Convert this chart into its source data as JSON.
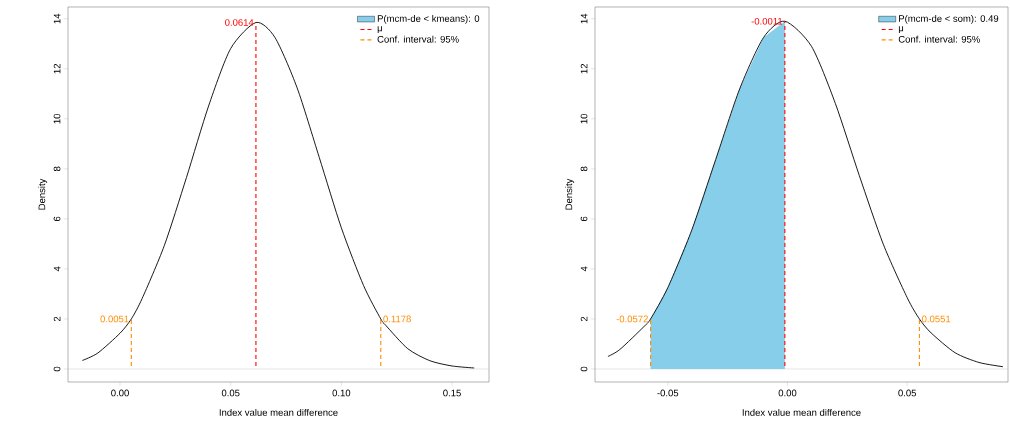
{
  "chart_data": [
    {
      "type": "line",
      "xlabel": "Index value mean difference",
      "ylabel": "Density",
      "xlim": [
        -0.0235,
        0.1667
      ],
      "ylim": [
        -0.52,
        14.47
      ],
      "xticks": [
        {
          "value": 0,
          "label": "0.00"
        },
        {
          "value": 0.05,
          "label": "0.05"
        },
        {
          "value": 0.1,
          "label": "0.10"
        },
        {
          "value": 0.15,
          "label": "0.15"
        }
      ],
      "yticks": [
        0,
        2,
        4,
        6,
        8,
        10,
        12,
        14
      ],
      "legend": "top right",
      "series": [
        {
          "type": "area",
          "name": "P(mcm-de < kmeans): 0",
          "color": "#87ceeb"
        },
        {
          "color": "#000000",
          "x": [
            -0.017,
            -0.01,
            0,
            0.0051,
            0.01,
            0.02,
            0.03,
            0.04,
            0.05,
            0.0614,
            0.07,
            0.08,
            0.09,
            0.1,
            0.11,
            0.1178,
            0.12,
            0.13,
            0.14,
            0.15,
            0.16
          ],
          "values": [
            0.34,
            0.64,
            1.43,
            2.0,
            2.82,
            4.93,
            7.65,
            10.51,
            12.81,
            13.85,
            13.25,
            11.24,
            8.46,
            5.64,
            3.34,
            2.0,
            1.75,
            0.81,
            0.33,
            0.12,
            0.04
          ]
        },
        {
          "name": "μ",
          "color": "#ff0000",
          "line_style": "dashed",
          "x": [
            0.0614,
            0.0614
          ],
          "values": [
            0,
            13.85
          ]
        },
        {
          "name": "Conf. interval: 95%",
          "color": "#ff8c00",
          "line_style": "dashed",
          "x": [
            0.0051,
            0.0051,
            null,
            0.1178,
            0.1178
          ],
          "values": [
            0,
            2.0,
            null,
            0,
            2.0
          ]
        }
      ],
      "ref_lines": [
        {
          "axis": "y",
          "value": 0,
          "color": "#bebebe"
        }
      ],
      "annotations": [
        {
          "text": "0.0614",
          "x": 0.0614,
          "y": 13.85
        },
        {
          "text": "0.0051",
          "x": 0.0051,
          "y": 2.0
        },
        {
          "text": "0.1178",
          "x": 0.1178,
          "y": 2.0
        }
      ]
    },
    {
      "type": "line",
      "xlabel": "Index value mean difference",
      "ylabel": "Density",
      "xlim": [
        -0.0804,
        0.0921
      ],
      "ylim": [
        -0.52,
        14.47
      ],
      "xticks": [
        {
          "value": -0.05,
          "label": "-0.05"
        },
        {
          "value": 0,
          "label": "0.00"
        },
        {
          "value": 0.05,
          "label": "0.05"
        }
      ],
      "yticks": [
        0,
        2,
        4,
        6,
        8,
        10,
        12,
        14
      ],
      "legend": "top right",
      "series": [
        {
          "type": "area",
          "name": "P(mcm-de < som): 0.49",
          "color": "#87ceeb",
          "x": [
            -0.0572,
            -0.05,
            -0.04,
            -0.03,
            -0.02,
            -0.01,
            -0.0011
          ],
          "values": [
            2.0,
            3.25,
            5.55,
            8.37,
            11.19,
            13.25,
            13.9
          ]
        },
        {
          "color": "#000000",
          "x": [
            -0.075,
            -0.07,
            -0.06,
            -0.0572,
            -0.05,
            -0.04,
            -0.03,
            -0.02,
            -0.01,
            -0.0011,
            0.01,
            0.02,
            0.03,
            0.04,
            0.05,
            0.0551,
            0.06,
            0.07,
            0.08,
            0.09
          ],
          "values": [
            0.5,
            0.78,
            1.69,
            2.0,
            3.25,
            5.55,
            8.37,
            11.19,
            13.25,
            13.9,
            12.9,
            10.61,
            7.73,
            4.99,
            2.85,
            2.0,
            1.44,
            0.65,
            0.26,
            0.09
          ]
        },
        {
          "name": "μ",
          "color": "#ff0000",
          "line_style": "dashed",
          "x": [
            -0.0011,
            -0.0011
          ],
          "values": [
            0,
            13.9
          ]
        },
        {
          "name": "Conf. interval: 95%",
          "color": "#ff8c00",
          "line_style": "dashed",
          "x": [
            -0.0572,
            -0.0572,
            null,
            0.0551,
            0.0551
          ],
          "values": [
            0,
            2.0,
            null,
            0,
            2.0
          ]
        }
      ],
      "ref_lines": [
        {
          "axis": "y",
          "value": 0,
          "color": "#bebebe"
        }
      ],
      "annotations": [
        {
          "text": "-0.0011",
          "x": -0.0011,
          "y": 13.9
        },
        {
          "text": "-0.0572",
          "x": -0.0572,
          "y": 2.0
        },
        {
          "text": "0.0551",
          "x": 0.0551,
          "y": 2.0
        }
      ]
    }
  ]
}
